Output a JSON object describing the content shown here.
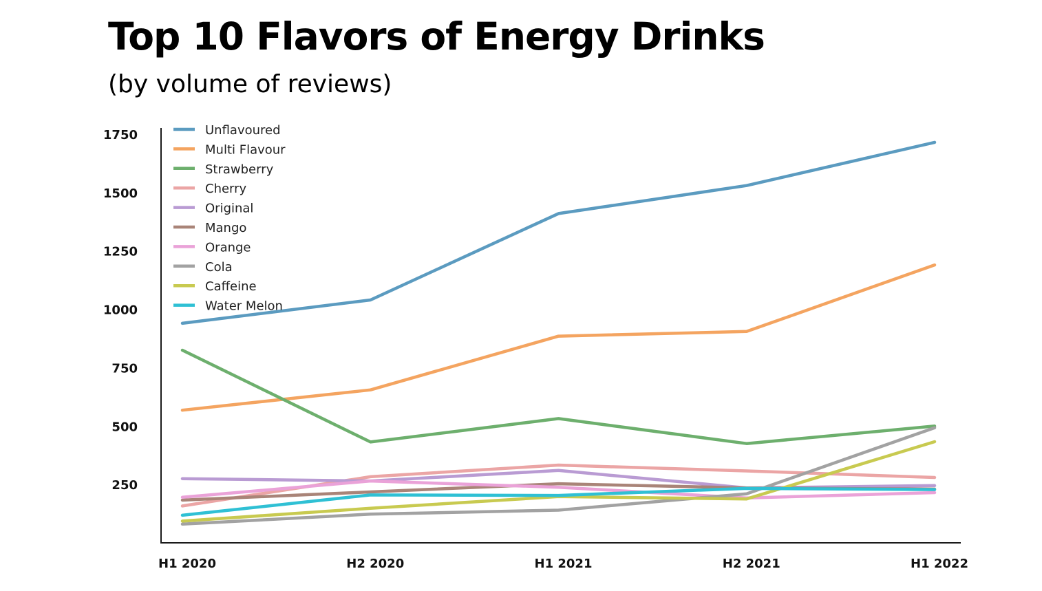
{
  "chart_data": {
    "type": "line",
    "title": "Top 10 Flavors of Energy Drinks",
    "subtitle": "(by volume of reviews)",
    "xlabel": "",
    "ylabel": "",
    "categories": [
      "H1 2020",
      "H2 2020",
      "H1 2021",
      "H2 2021",
      "H1 2022"
    ],
    "ylim": [
      0,
      1750
    ],
    "yticks": [
      250,
      500,
      750,
      1000,
      1250,
      1500,
      1750
    ],
    "grid": false,
    "legend_position": "top-left",
    "series": [
      {
        "name": "Unflavoured",
        "color": "#5b9bc0",
        "values": [
          940,
          1040,
          1410,
          1530,
          1715
        ]
      },
      {
        "name": "Multi Flavour",
        "color": "#f4a460",
        "values": [
          568,
          655,
          885,
          905,
          1190
        ]
      },
      {
        "name": "Strawberry",
        "color": "#6daf6d",
        "values": [
          825,
          432,
          532,
          425,
          500
        ]
      },
      {
        "name": "Cherry",
        "color": "#eba5a5",
        "values": [
          158,
          283,
          333,
          308,
          280
        ]
      },
      {
        "name": "Original",
        "color": "#b99bd3",
        "values": [
          275,
          265,
          310,
          235,
          245
        ]
      },
      {
        "name": "Mango",
        "color": "#a98478",
        "values": [
          183,
          218,
          253,
          235,
          230
        ]
      },
      {
        "name": "Orange",
        "color": "#eaa2d8",
        "values": [
          195,
          265,
          238,
          192,
          215
        ]
      },
      {
        "name": "Cola",
        "color": "#a2a2a2",
        "values": [
          80,
          123,
          140,
          210,
          493
        ]
      },
      {
        "name": "Caffeine",
        "color": "#c8ca50",
        "values": [
          93,
          148,
          198,
          188,
          433
        ]
      },
      {
        "name": "Water Melon",
        "color": "#2fc0d4",
        "values": [
          118,
          205,
          203,
          233,
          228
        ]
      }
    ]
  }
}
